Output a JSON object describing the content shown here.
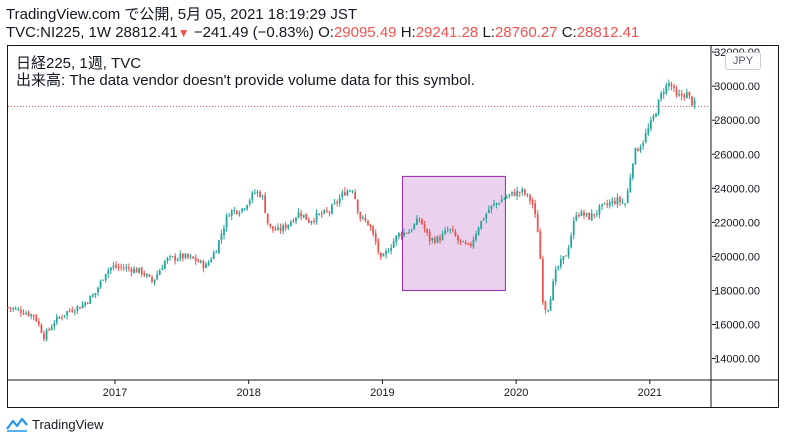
{
  "header": {
    "line1": "TradingView.com で公開, 5月 05, 2021 18:19:29 JST",
    "symbol": "TVC:NI225, 1W 28812.41",
    "change_arrow": "▼",
    "change": "−241.49 (−0.83%)",
    "o_label": "O:",
    "o_value": "29095.49",
    "h_label": "H:",
    "h_value": "29241.28",
    "l_label": "L:",
    "l_value": "28760.27",
    "c_label": "C:",
    "c_value": "28812.41"
  },
  "legend": {
    "line1": "日経225, 1週, TVC",
    "line2": "出来高: The data vendor doesn't provide volume data for this symbol."
  },
  "currency_badge": "JPY",
  "footer": {
    "brand": "TradingView"
  },
  "colors": {
    "up": "#26a69a",
    "down": "#ef5350",
    "box_fill": "#e1bee7",
    "box_stroke": "#9c27b0",
    "last_price_line": "#ef5350"
  },
  "chart_data": {
    "type": "candlestick",
    "title": "日経225, 1週, TVC",
    "x_ticks": [
      "2017",
      "2018",
      "2019",
      "2020",
      "2021"
    ],
    "y_ticks": [
      "14000.00",
      "16000.00",
      "18000.00",
      "20000.00",
      "22000.00",
      "24000.00",
      "26000.00",
      "28000.00",
      "30000.00",
      "32000.00"
    ],
    "ylim": [
      12800,
      32300
    ],
    "x_range": [
      2016.2,
      2021.45
    ],
    "last_close": 28812.41,
    "path": [
      [
        2016.2,
        17000
      ],
      [
        2016.3,
        16800
      ],
      [
        2016.4,
        16500
      ],
      [
        2016.47,
        15300
      ],
      [
        2016.55,
        16200
      ],
      [
        2016.65,
        16800
      ],
      [
        2016.75,
        17100
      ],
      [
        2016.85,
        17800
      ],
      [
        2016.93,
        19100
      ],
      [
        2016.98,
        19400
      ],
      [
        2017.1,
        19300
      ],
      [
        2017.2,
        19100
      ],
      [
        2017.28,
        18500
      ],
      [
        2017.38,
        19800
      ],
      [
        2017.5,
        20000
      ],
      [
        2017.6,
        19800
      ],
      [
        2017.68,
        19400
      ],
      [
        2017.76,
        20500
      ],
      [
        2017.85,
        22600
      ],
      [
        2017.95,
        22800
      ],
      [
        2018.05,
        23800
      ],
      [
        2018.1,
        23600
      ],
      [
        2018.15,
        21700
      ],
      [
        2018.22,
        21500
      ],
      [
        2018.28,
        21800
      ],
      [
        2018.38,
        22600
      ],
      [
        2018.45,
        22100
      ],
      [
        2018.52,
        22400
      ],
      [
        2018.6,
        22600
      ],
      [
        2018.72,
        23800
      ],
      [
        2018.78,
        24000
      ],
      [
        2018.83,
        22300
      ],
      [
        2018.9,
        21900
      ],
      [
        2018.96,
        20600
      ],
      [
        2018.99,
        19700
      ],
      [
        2019.05,
        20500
      ],
      [
        2019.12,
        21300
      ],
      [
        2019.2,
        21500
      ],
      [
        2019.28,
        22200
      ],
      [
        2019.35,
        21000
      ],
      [
        2019.42,
        21000
      ],
      [
        2019.5,
        21600
      ],
      [
        2019.58,
        20800
      ],
      [
        2019.65,
        20500
      ],
      [
        2019.72,
        21800
      ],
      [
        2019.8,
        22800
      ],
      [
        2019.9,
        23400
      ],
      [
        2019.98,
        23700
      ],
      [
        2020.05,
        23800
      ],
      [
        2020.12,
        23200
      ],
      [
        2020.17,
        21200
      ],
      [
        2020.2,
        17500
      ],
      [
        2020.23,
        16700
      ],
      [
        2020.3,
        19200
      ],
      [
        2020.38,
        20200
      ],
      [
        2020.45,
        22600
      ],
      [
        2020.55,
        22300
      ],
      [
        2020.65,
        22900
      ],
      [
        2020.75,
        23300
      ],
      [
        2020.82,
        23100
      ],
      [
        2020.88,
        26000
      ],
      [
        2020.95,
        26800
      ],
      [
        2021.02,
        28000
      ],
      [
        2021.1,
        29800
      ],
      [
        2021.15,
        30200
      ],
      [
        2021.2,
        29300
      ],
      [
        2021.27,
        29600
      ],
      [
        2021.32,
        29000
      ],
      [
        2021.35,
        28812
      ]
    ],
    "annotations": [
      {
        "type": "rectangle",
        "x": [
          2019.15,
          2019.92
        ],
        "y": [
          18000,
          24700
        ]
      },
      {
        "type": "horizontal_line",
        "y": 28812.41
      }
    ]
  }
}
